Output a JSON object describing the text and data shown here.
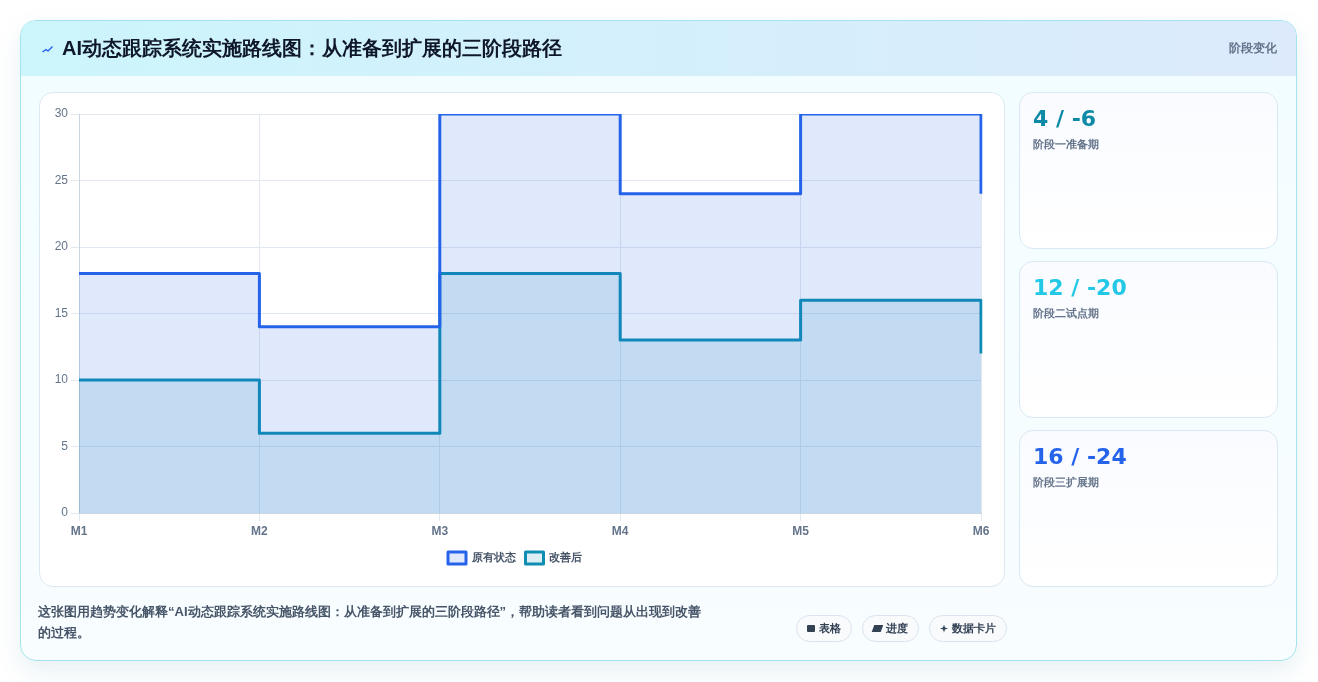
{
  "chart_data": [
    {
      "type": "step",
      "title": "AI动态跟踪系统实施路线图：从准备到扩展的三阶段路径",
      "categories": [
        "M1",
        "M2",
        "M3",
        "M4",
        "M5",
        "M6"
      ],
      "series": [
        {
          "name": "原有状态",
          "color": "#2563eb",
          "values": [
            18,
            14,
            30,
            24,
            30,
            24
          ],
          "lower": [
            0,
            0,
            0,
            0,
            0,
            0
          ],
          "upper": [
            18,
            14,
            30,
            24,
            30,
            24
          ]
        },
        {
          "name": "改善后",
          "color": "#0f8db3",
          "values": [
            10,
            6,
            18,
            13,
            16,
            12
          ],
          "lower": [
            0,
            0,
            0,
            0,
            0,
            0
          ],
          "upper": [
            10,
            6,
            18,
            13,
            16,
            12
          ]
        }
      ],
      "ylim": [
        0,
        30
      ],
      "yticks": [
        0,
        5,
        10,
        15,
        20,
        25,
        30
      ],
      "grid": true,
      "legend": "bottom",
      "marker": "none",
      "annotations": [
        "这张图用趋势变化解释“AI动态跟踪系统实施路线图：从准备到扩展的三阶段路径”，帮助读者看到问题从出现到改善的过程。",
        "表格",
        "进度",
        "数据卡片"
      ]
    },
    {
      "type": "other",
      "title": "4 / -6",
      "subtitle": "阶段一准备期",
      "annotations": [
        "阶段变化"
      ]
    },
    {
      "type": "other",
      "title": "12 / -20",
      "subtitle": "阶段二试点期"
    },
    {
      "type": "other",
      "title": "16 / -24",
      "subtitle": "阶段三扩展期"
    }
  ]
}
